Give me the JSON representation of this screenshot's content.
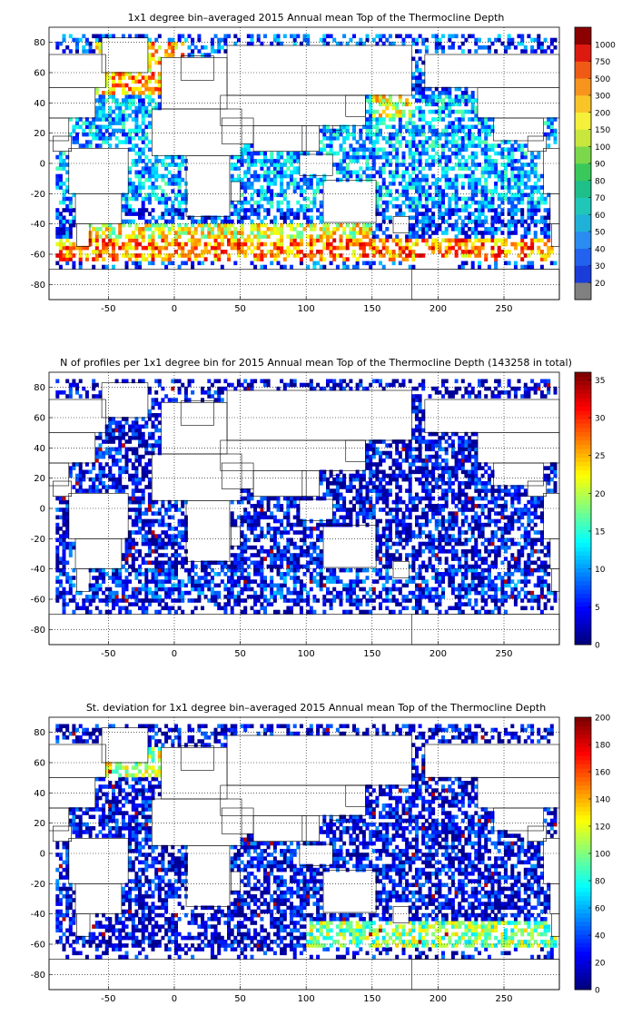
{
  "chart_data": [
    {
      "type": "heatmap",
      "title": "1x1 degree bin–averaged 2015 Annual mean Top of the Thermocline Depth",
      "xlim": [
        -95,
        292
      ],
      "ylim": [
        -90,
        90
      ],
      "xticks": [
        -50,
        0,
        50,
        100,
        150,
        200,
        250
      ],
      "yticks": [
        -80,
        -60,
        -40,
        -20,
        0,
        20,
        40,
        60,
        80
      ],
      "grid": true,
      "colorbar": {
        "scale": "categorical",
        "labels": [
          "20",
          "30",
          "40",
          "50",
          "60",
          "70",
          "80",
          "90",
          "100",
          "150",
          "200",
          "300",
          "500",
          "750",
          "1000"
        ],
        "colors": [
          "#808080",
          "#1a3cd8",
          "#2262ee",
          "#2a8cf0",
          "#1fb1d8",
          "#20c6b8",
          "#1fbf8a",
          "#38c95a",
          "#7ad84a",
          "#c8e63c",
          "#f5f03a",
          "#f9c428",
          "#f7941d",
          "#ef5a14",
          "#dd1a10",
          "#8b0000"
        ]
      },
      "bands": [
        {
          "lat": [
            -64,
            -50
          ],
          "lon": [
            -90,
            290
          ],
          "level": 0.75
        },
        {
          "lat": [
            -50,
            -40
          ],
          "lon": [
            -70,
            150
          ],
          "level": 0.6
        },
        {
          "lat": [
            45,
            80
          ],
          "lon": [
            -60,
            10
          ],
          "level": 0.7
        },
        {
          "lat": [
            30,
            45
          ],
          "lon": [
            150,
            180
          ],
          "level": 0.6
        },
        {
          "lat": [
            -30,
            45
          ],
          "lon": [
            -90,
            290
          ],
          "level": 0.3
        }
      ]
    },
    {
      "type": "heatmap",
      "title": "N of profiles per 1x1 degree bin for 2015 Annual mean Top of the Thermocline Depth  (143258 in total)",
      "xlim": [
        -95,
        292
      ],
      "ylim": [
        -90,
        90
      ],
      "xticks": [
        -50,
        0,
        50,
        100,
        150,
        200,
        250
      ],
      "yticks": [
        -80,
        -60,
        -40,
        -20,
        0,
        20,
        40,
        60,
        80
      ],
      "grid": true,
      "colorbar": {
        "scale": "linear",
        "min": 0,
        "max": 36,
        "ticks": [
          0,
          5,
          10,
          15,
          20,
          25,
          30,
          35
        ]
      },
      "total_profiles": 143258,
      "bands": [
        {
          "lat": [
            -60,
            -40
          ],
          "lon": [
            -90,
            290
          ],
          "level": 0.15
        },
        {
          "lat": [
            -30,
            45
          ],
          "lon": [
            -90,
            290
          ],
          "level": 0.1
        }
      ]
    },
    {
      "type": "heatmap",
      "title": "St. deviation for 1x1 degree bin–averaged 2015 Annual mean Top of the Thermocline Depth",
      "xlim": [
        -95,
        292
      ],
      "ylim": [
        -90,
        90
      ],
      "xticks": [
        -50,
        0,
        50,
        100,
        150,
        200,
        250
      ],
      "yticks": [
        -80,
        -60,
        -40,
        -20,
        0,
        20,
        40,
        60,
        80
      ],
      "grid": true,
      "colorbar": {
        "scale": "linear",
        "min": 0,
        "max": 200,
        "ticks": [
          0,
          20,
          40,
          60,
          80,
          100,
          120,
          140,
          160,
          180,
          200
        ]
      },
      "bands": [
        {
          "lat": [
            -62,
            -45
          ],
          "lon": [
            100,
            290
          ],
          "level": 0.5
        },
        {
          "lat": [
            50,
            70
          ],
          "lon": [
            -60,
            -10
          ],
          "level": 0.55
        },
        {
          "lat": [
            -30,
            45
          ],
          "lon": [
            -90,
            290
          ],
          "level": 0.1
        }
      ]
    }
  ]
}
